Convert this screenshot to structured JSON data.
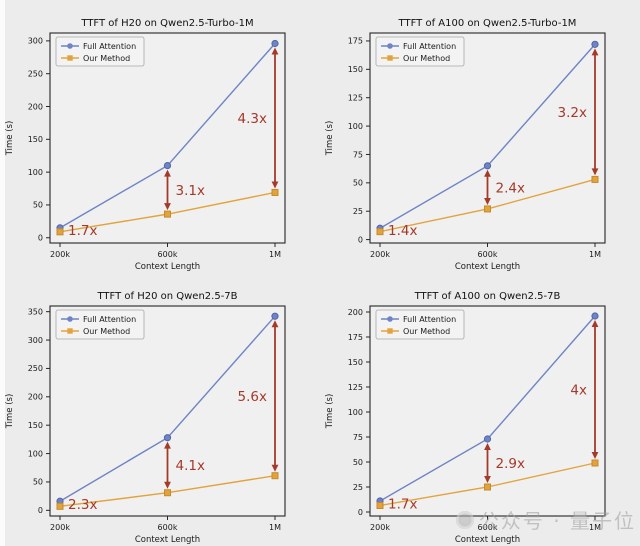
{
  "colors": {
    "background": "#ececec",
    "plot_bg": "#f0f0f0",
    "spine": "#262626",
    "text": "#1a1a1a",
    "full_attention": "#6e84c4",
    "full_attention_edge": "#5166a8",
    "our_method": "#e3a33c",
    "our_method_edge": "#c68a2d",
    "annotation": "#a43a2a",
    "legend_bg": "#f3f3f3",
    "legend_border": "#a8a8a8"
  },
  "legend": [
    "Full Attention",
    "Our Method"
  ],
  "watermark": {
    "text": "公众号 · 量子位"
  },
  "chart_data": [
    {
      "type": "line",
      "title": "TTFT of H20 on Qwen2.5-Turbo-1M",
      "xlabel": "Context Length",
      "ylabel": "Time (s)",
      "categories": [
        "200k",
        "600k",
        "1M"
      ],
      "ylim": [
        -8,
        312
      ],
      "yticks": [
        0,
        50,
        100,
        150,
        200,
        250,
        300
      ],
      "legend_position": "upper left",
      "grid": false,
      "series": [
        {
          "name": "Full Attention",
          "values": [
            15,
            110,
            296
          ]
        },
        {
          "name": "Our Method",
          "values": [
            9,
            36,
            69
          ]
        }
      ],
      "annotations": [
        {
          "label": "1.7x",
          "x_index": 0,
          "arrow": false,
          "side": "right"
        },
        {
          "label": "3.1x",
          "x_index": 1,
          "arrow": true,
          "side": "right"
        },
        {
          "label": "4.3x",
          "x_index": 2,
          "arrow": true,
          "side": "left"
        }
      ]
    },
    {
      "type": "line",
      "title": "TTFT of A100 on Qwen2.5-Turbo-1M",
      "xlabel": "Context Length",
      "ylabel": "Time (s)",
      "categories": [
        "200k",
        "600k",
        "1M"
      ],
      "ylim": [
        -3,
        182
      ],
      "yticks": [
        0,
        25,
        50,
        75,
        100,
        125,
        150,
        175
      ],
      "legend_position": "upper left",
      "grid": false,
      "series": [
        {
          "name": "Full Attention",
          "values": [
            10,
            65,
            172
          ]
        },
        {
          "name": "Our Method",
          "values": [
            7,
            27,
            53
          ]
        }
      ],
      "annotations": [
        {
          "label": "1.4x",
          "x_index": 0,
          "arrow": false,
          "side": "right"
        },
        {
          "label": "2.4x",
          "x_index": 1,
          "arrow": true,
          "side": "right"
        },
        {
          "label": "3.2x",
          "x_index": 2,
          "arrow": true,
          "side": "left"
        }
      ]
    },
    {
      "type": "line",
      "title": "TTFT of H20 on Qwen2.5-7B",
      "xlabel": "Context Length",
      "ylabel": "Time (s)",
      "categories": [
        "200k",
        "600k",
        "1M"
      ],
      "ylim": [
        -10,
        360
      ],
      "yticks": [
        0,
        50,
        100,
        150,
        200,
        250,
        300,
        350
      ],
      "legend_position": "upper left",
      "grid": false,
      "series": [
        {
          "name": "Full Attention",
          "values": [
            16,
            128,
            342
          ]
        },
        {
          "name": "Our Method",
          "values": [
            7,
            31,
            61
          ]
        }
      ],
      "annotations": [
        {
          "label": "2.3x",
          "x_index": 0,
          "arrow": false,
          "side": "right"
        },
        {
          "label": "4.1x",
          "x_index": 1,
          "arrow": true,
          "side": "right"
        },
        {
          "label": "5.6x",
          "x_index": 2,
          "arrow": true,
          "side": "left"
        }
      ]
    },
    {
      "type": "line",
      "title": "TTFT of A100 on Qwen2.5-7B",
      "xlabel": "Context Length",
      "ylabel": "Time (s)",
      "categories": [
        "200k",
        "600k",
        "1M"
      ],
      "ylim": [
        -4,
        206
      ],
      "yticks": [
        0,
        25,
        50,
        75,
        100,
        125,
        150,
        175,
        200
      ],
      "legend_position": "upper left",
      "grid": false,
      "series": [
        {
          "name": "Full Attention",
          "values": [
            11,
            73,
            196
          ]
        },
        {
          "name": "Our Method",
          "values": [
            6.5,
            25,
            49
          ]
        }
      ],
      "annotations": [
        {
          "label": "1.7x",
          "x_index": 0,
          "arrow": false,
          "side": "right"
        },
        {
          "label": "2.9x",
          "x_index": 1,
          "arrow": true,
          "side": "right"
        },
        {
          "label": "4x",
          "x_index": 2,
          "arrow": true,
          "side": "left"
        }
      ]
    }
  ]
}
